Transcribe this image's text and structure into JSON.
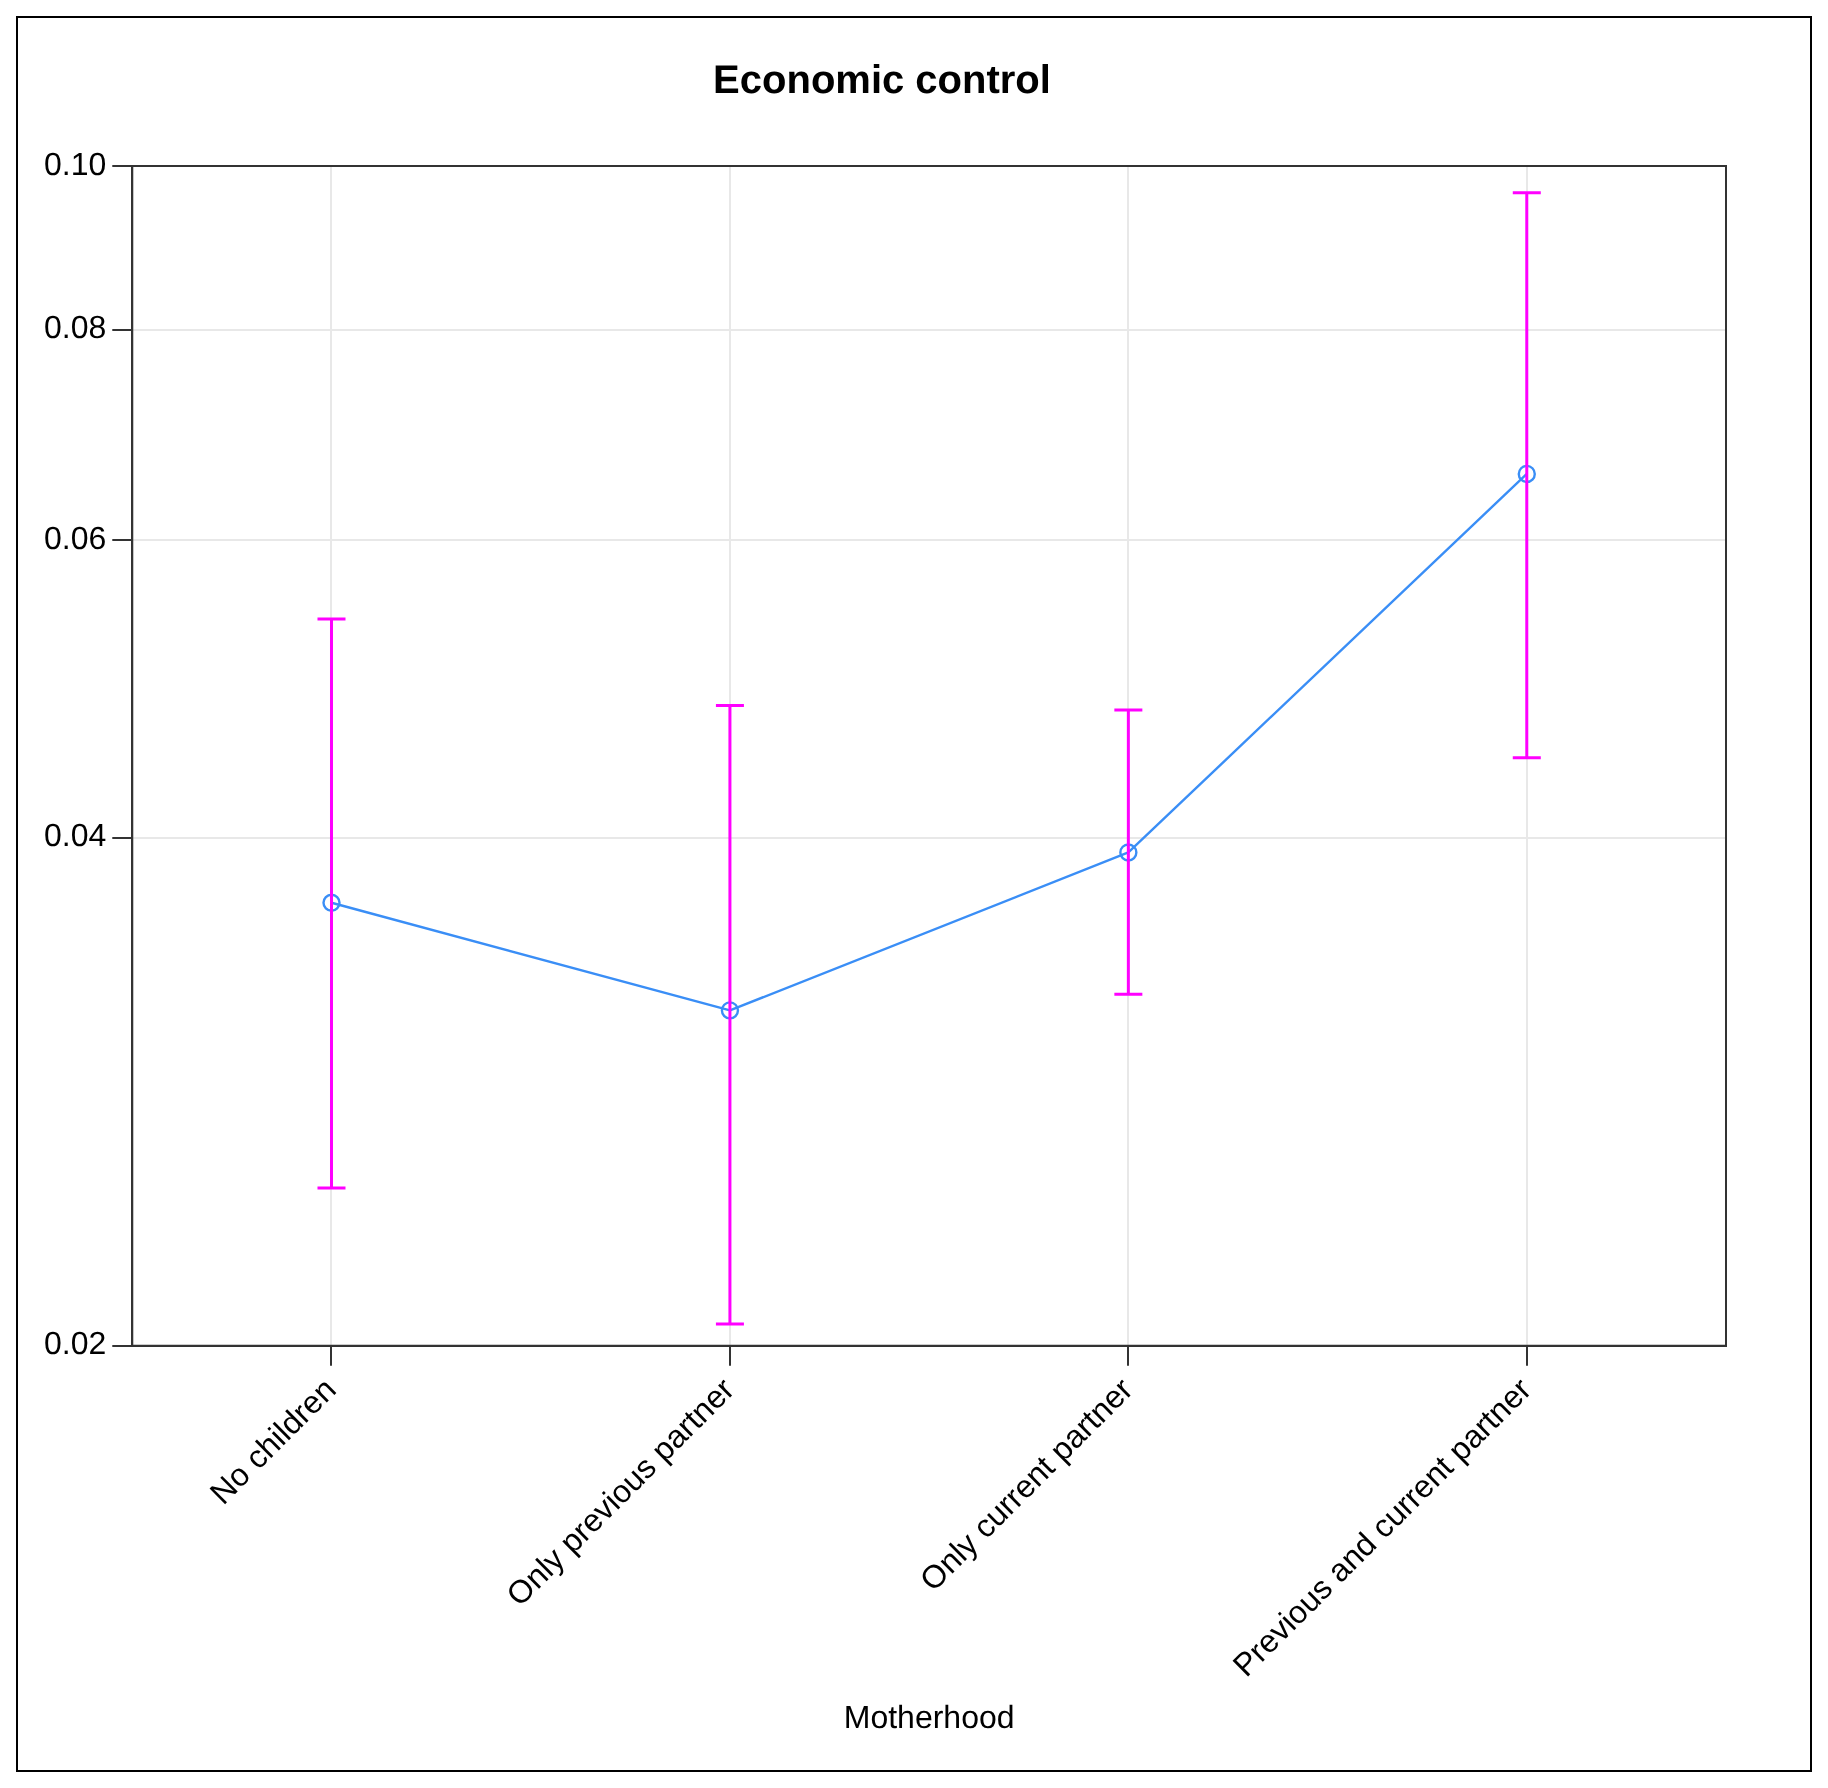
{
  "chart_data": {
    "type": "line",
    "title": "Economic control",
    "xlabel": "Motherhood",
    "categories": [
      "No children",
      "Only previous partner",
      "Only current partner",
      "Previous and current partner"
    ],
    "series": [
      {
        "color": "#3a8ef6",
        "values": [
          0.0366,
          0.0316,
          0.0392,
          0.0657
        ],
        "errors": [
          [
            0.0248,
            0.0539
          ],
          [
            0.0206,
            0.0479
          ],
          [
            0.0323,
            0.0476
          ],
          [
            0.0446,
            0.0964
          ]
        ]
      }
    ],
    "ylim": [
      0.02,
      0.1
    ],
    "yticks": [
      0.02,
      0.04,
      0.06,
      0.08,
      {
        "value": 0.1,
        "label": "0.10"
      }
    ],
    "log": true,
    "grid": true,
    "legend": false,
    "marker": "circle",
    "line_style": "solid"
  }
}
